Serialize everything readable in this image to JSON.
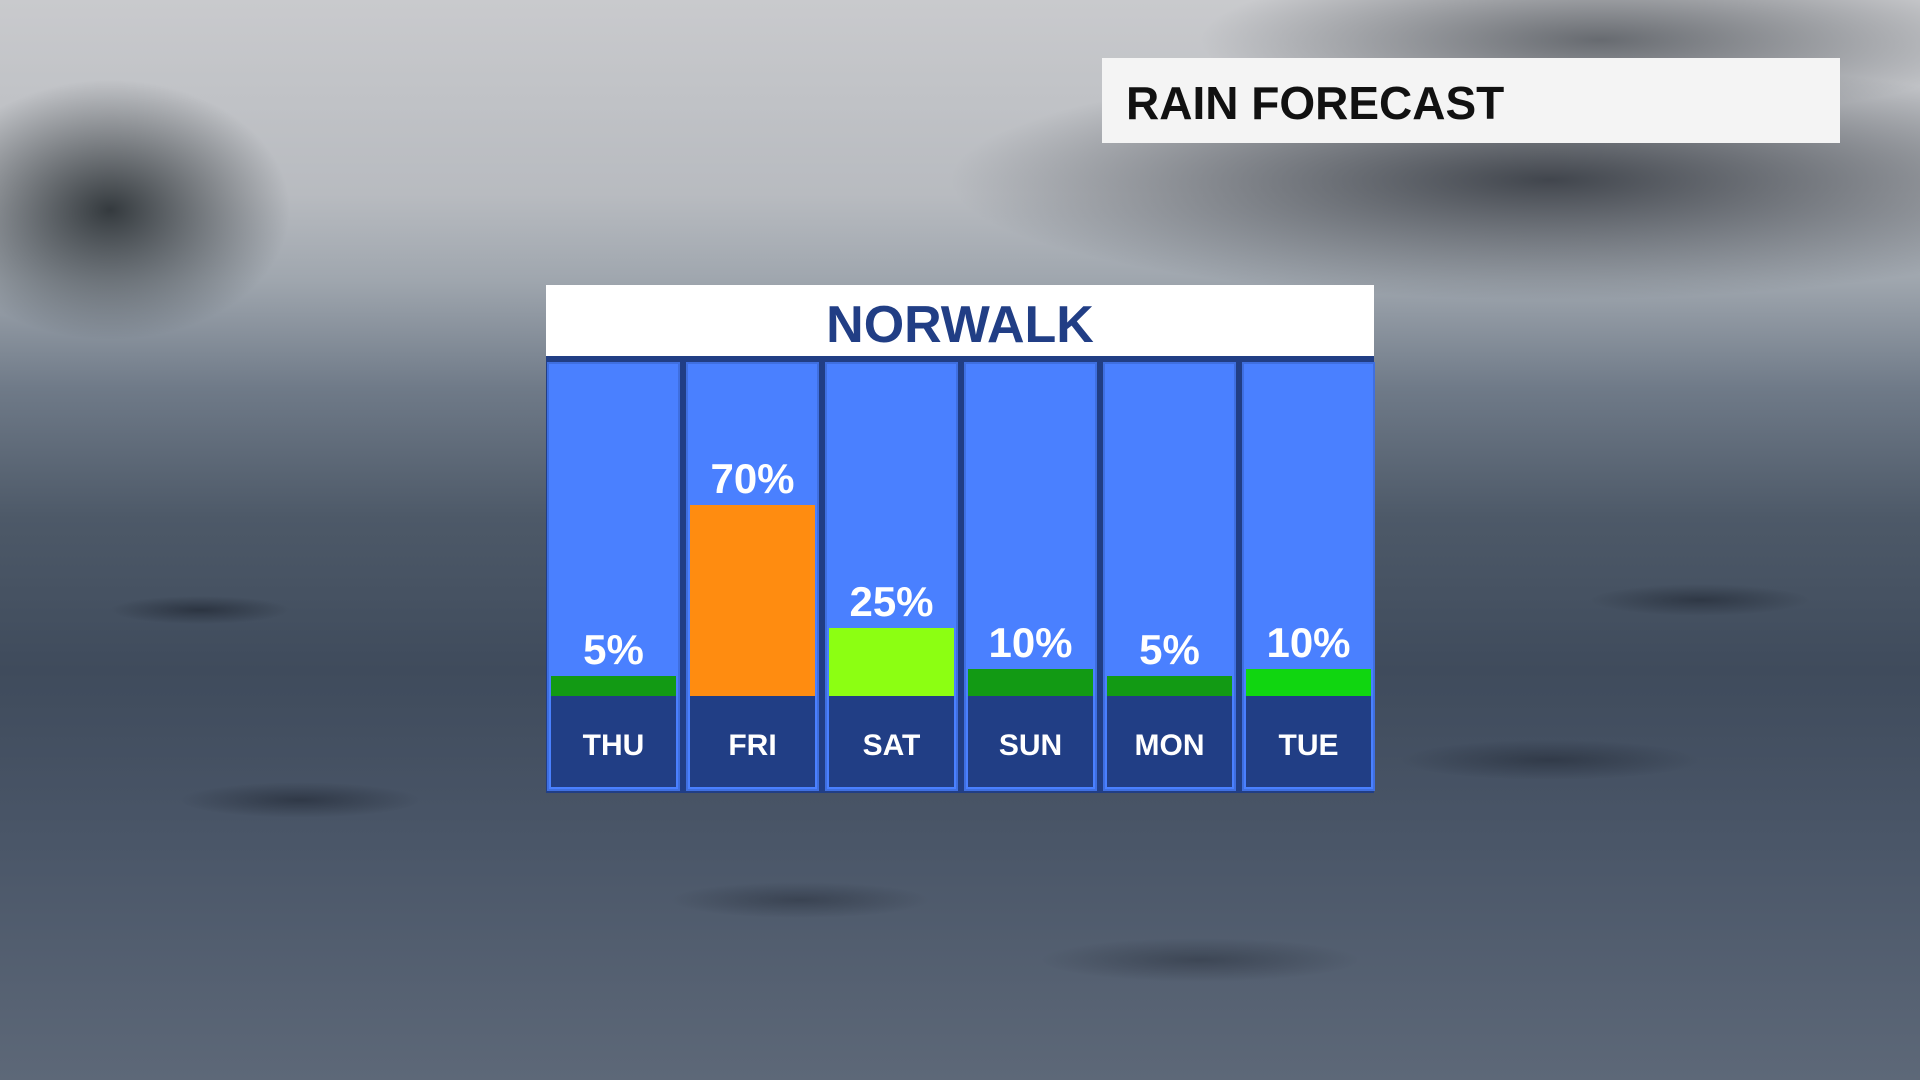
{
  "header": {
    "title": "RAIN FORECAST"
  },
  "chart_data": {
    "type": "bar",
    "title": "NORWALK",
    "categories": [
      "THU",
      "FRI",
      "SAT",
      "SUN",
      "MON",
      "TUE"
    ],
    "values": [
      5,
      70,
      25,
      10,
      5,
      10
    ],
    "labels": [
      "5%",
      "70%",
      "25%",
      "10%",
      "5%",
      "10%"
    ],
    "unit": "%",
    "ylim": [
      0,
      100
    ],
    "colors": [
      "#129a14",
      "#ff8c10",
      "#8cff12",
      "#129a14",
      "#129a14",
      "#10d610"
    ],
    "column_color": "#4a80ff",
    "label_band_color": "#213e85"
  }
}
